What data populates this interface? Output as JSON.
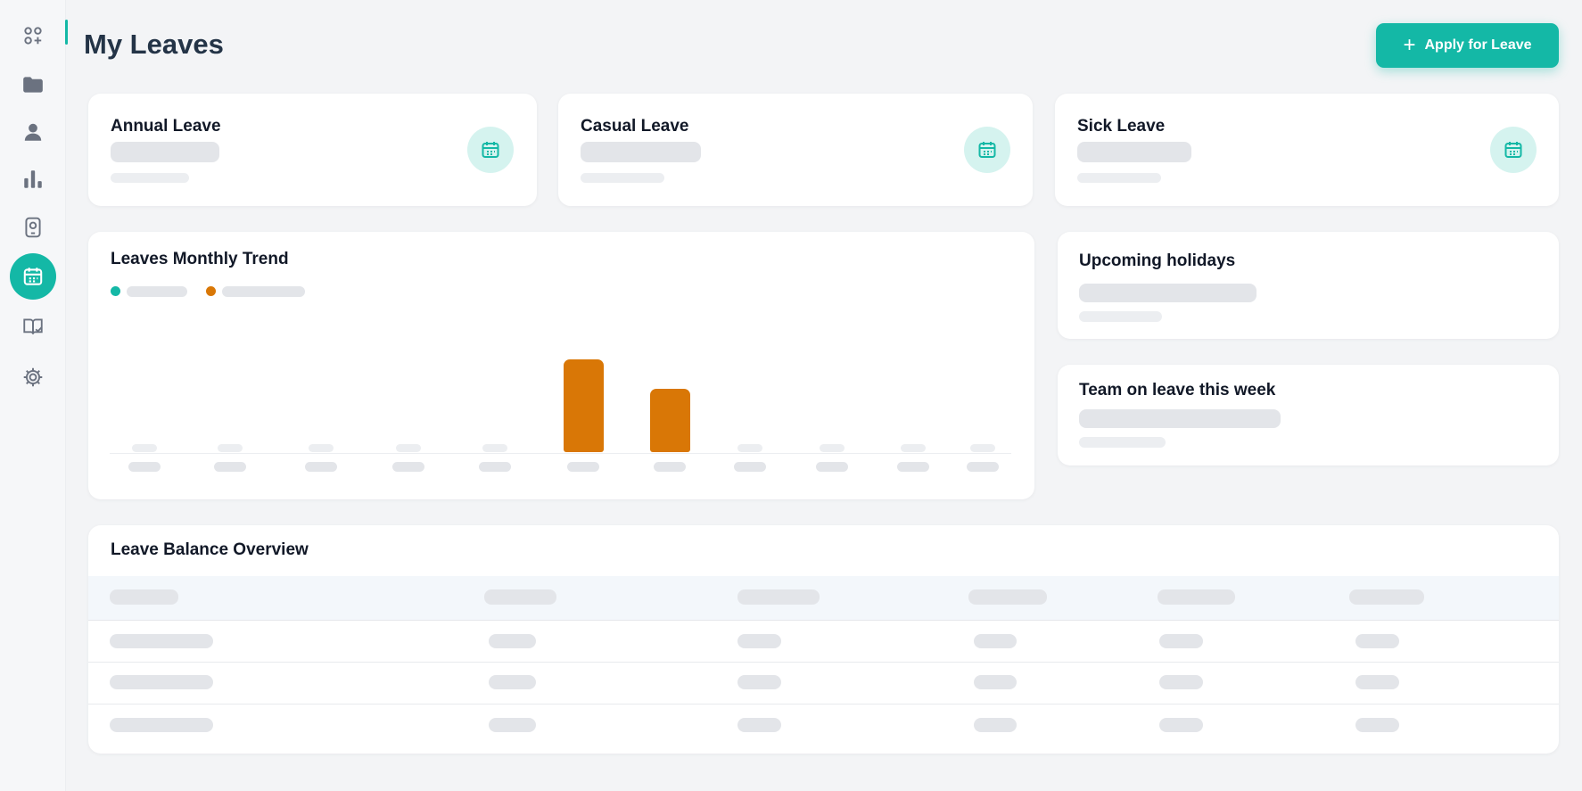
{
  "header": {
    "title": "My Leaves",
    "apply_button": "Apply for Leave",
    "apply_icon": "+"
  },
  "sidebar": {
    "items": [
      {
        "icon": "apps-add-icon",
        "active": false
      },
      {
        "icon": "folder-icon",
        "active": false
      },
      {
        "icon": "user-icon",
        "active": false
      },
      {
        "icon": "bar-chart-icon",
        "active": false
      },
      {
        "icon": "device-icon",
        "active": false
      },
      {
        "icon": "calendar-icon",
        "active": true
      },
      {
        "icon": "book-icon",
        "active": false
      },
      {
        "icon": "gear-icon",
        "active": false
      }
    ]
  },
  "summary_cards": [
    {
      "title": "Annual Leave",
      "icon": "calendar-icon"
    },
    {
      "title": "Casual Leave",
      "icon": "calendar-icon"
    },
    {
      "title": "Sick Leave",
      "icon": "calendar-icon"
    }
  ],
  "trend": {
    "title": "Leaves Monthly Trend",
    "legend_colors": [
      "#14b8a6",
      "#d97706"
    ]
  },
  "chart_data": {
    "type": "bar",
    "series": [
      {
        "color": "#d97706",
        "values": [
          0,
          0,
          0,
          0,
          0,
          1,
          0.68,
          0,
          0,
          0,
          0
        ]
      }
    ]
  },
  "upcoming_holidays": {
    "title": "Upcoming holidays"
  },
  "team_on_leave": {
    "title": "Team on leave this week"
  },
  "balance": {
    "title": "Leave Balance Overview"
  },
  "colors": {
    "accent": "#14b8a6",
    "secondary": "#d97706",
    "background": "#f3f4f6"
  }
}
